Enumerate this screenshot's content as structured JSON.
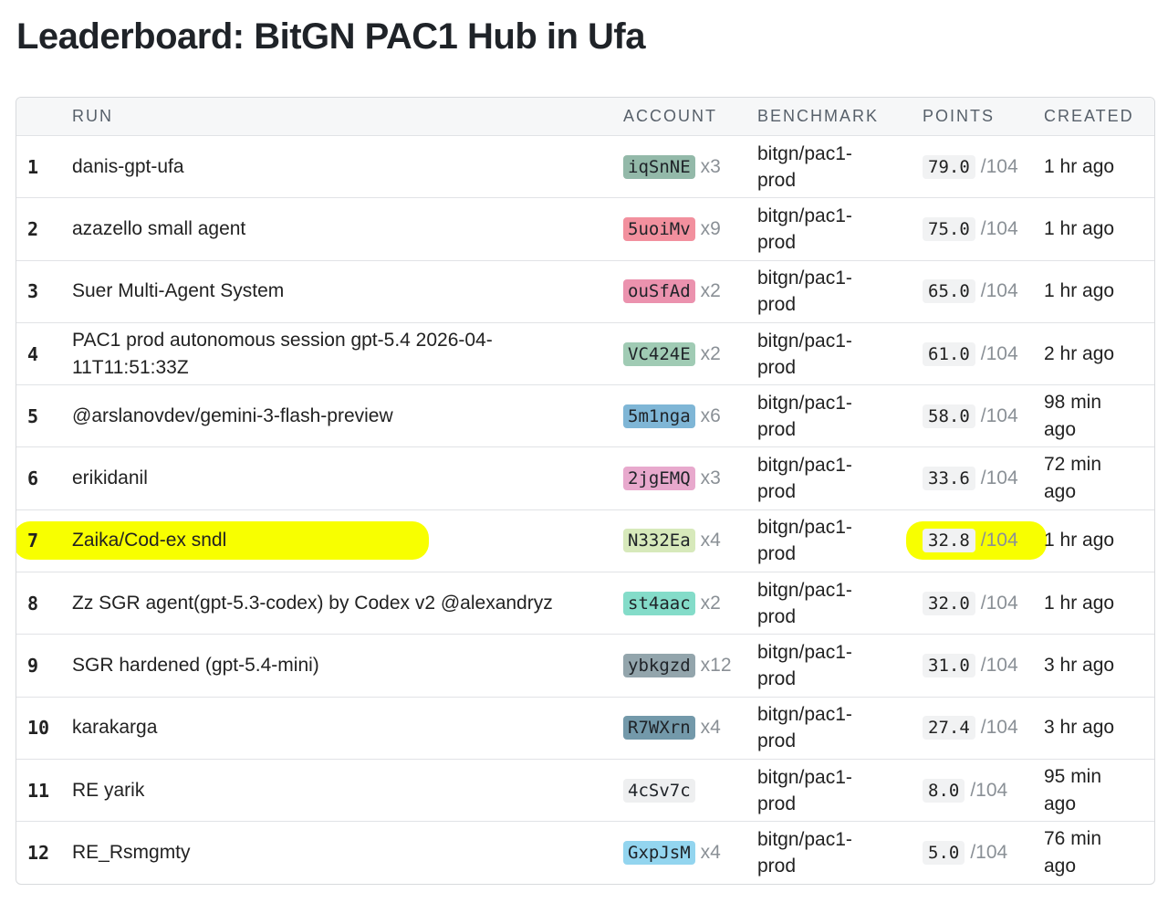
{
  "header": {
    "title": "Leaderboard: BitGN PAC1 Hub in Ufa"
  },
  "table": {
    "columns": [
      "RUN",
      "ACCOUNT",
      "BENCHMARK",
      "POINTS",
      "CREATED"
    ],
    "rows": [
      {
        "rank": "1",
        "run": "danis-gpt-ufa",
        "account": "iqSnNE",
        "account_color": "#93b9a9",
        "count": "x3",
        "benchmark": "bitgn/pac1-prod",
        "points": "79.0",
        "max": "/104",
        "created": "1 hr ago"
      },
      {
        "rank": "2",
        "run": "azazello small agent",
        "account": "5uoiMv",
        "account_color": "#f2909e",
        "count": "x9",
        "benchmark": "bitgn/pac1-prod",
        "points": "75.0",
        "max": "/104",
        "created": "1 hr ago"
      },
      {
        "rank": "3",
        "run": "Suer Multi-Agent System",
        "account": "ouSfAd",
        "account_color": "#eb92ae",
        "count": "x2",
        "benchmark": "bitgn/pac1-prod",
        "points": "65.0",
        "max": "/104",
        "created": "1 hr ago"
      },
      {
        "rank": "4",
        "run": "PAC1 prod autonomous session gpt-5.4 2026-04-11T11:51:33Z",
        "account": "VC424E",
        "account_color": "#a0cbb4",
        "count": "x2",
        "benchmark": "bitgn/pac1-prod",
        "points": "61.0",
        "max": "/104",
        "created": "2 hr ago"
      },
      {
        "rank": "5",
        "run": "@arslanovdev/gemini-3-flash-preview",
        "account": "5m1nga",
        "account_color": "#7fb6d6",
        "count": "x6",
        "benchmark": "bitgn/pac1-prod",
        "points": "58.0",
        "max": "/104",
        "created": "98 min ago"
      },
      {
        "rank": "6",
        "run": "erikidanil",
        "account": "2jgEMQ",
        "account_color": "#e8a9cd",
        "count": "x3",
        "benchmark": "bitgn/pac1-prod",
        "points": "33.6",
        "max": "/104",
        "created": "72 min ago"
      },
      {
        "rank": "7",
        "run": "Zaika/Cod-ex sndl",
        "account": "N332Ea",
        "account_color": "#d7e9bb",
        "count": "x4",
        "benchmark": "bitgn/pac1-prod",
        "points": "32.8",
        "max": "/104",
        "created": "1 hr ago",
        "highlighted": true
      },
      {
        "rank": "8",
        "run": "Zz SGR agent(gpt-5.3-codex) by Codex v2 @alexandryz",
        "account": "st4aac",
        "account_color": "#84dcc9",
        "count": "x2",
        "benchmark": "bitgn/pac1-prod",
        "points": "32.0",
        "max": "/104",
        "created": "1 hr ago"
      },
      {
        "rank": "9",
        "run": "SGR hardened (gpt-5.4-mini)",
        "account": "ybkgzd",
        "account_color": "#93a5ac",
        "count": "x12",
        "benchmark": "bitgn/pac1-prod",
        "points": "31.0",
        "max": "/104",
        "created": "3 hr ago"
      },
      {
        "rank": "10",
        "run": "karakarga",
        "account": "R7WXrn",
        "account_color": "#7399aa",
        "count": "x4",
        "benchmark": "bitgn/pac1-prod",
        "points": "27.4",
        "max": "/104",
        "created": "3 hr ago"
      },
      {
        "rank": "11",
        "run": "RE yarik",
        "account": "4cSv7c",
        "account_color": "#eeeff0",
        "benchmark": "bitgn/pac1-prod",
        "points": "8.0",
        "max": "/104",
        "created": "95 min ago"
      },
      {
        "rank": "12",
        "run": "RE_Rsmgmty",
        "account": "GxpJsM",
        "account_color": "#93d5ef",
        "count": "x4",
        "benchmark": "bitgn/pac1-prod",
        "points": "5.0",
        "max": "/104",
        "created": "76 min ago"
      }
    ]
  }
}
